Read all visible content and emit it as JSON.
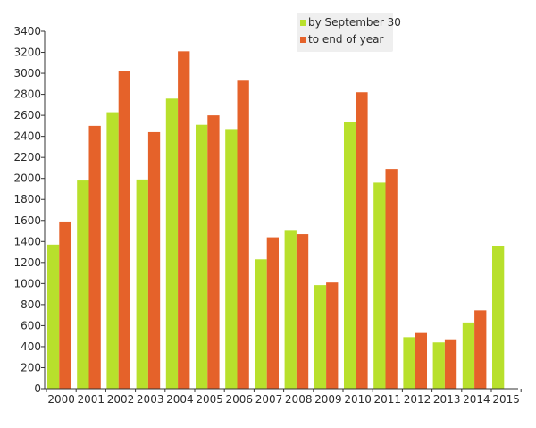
{
  "chart_data": {
    "type": "bar",
    "categories": [
      "2000",
      "2001",
      "2002",
      "2003",
      "2004",
      "2005",
      "2006",
      "2007",
      "2008",
      "2009",
      "2010",
      "2011",
      "2012",
      "2013",
      "2014",
      "2015"
    ],
    "series": [
      {
        "name": "by September 30",
        "color": "#b8e02c",
        "values": [
          1370,
          1980,
          2630,
          1990,
          2760,
          2510,
          2470,
          1230,
          1510,
          985,
          2540,
          1960,
          490,
          440,
          630,
          1360
        ]
      },
      {
        "name": "to end of year",
        "color": "#e5622a",
        "values": [
          1590,
          2500,
          3020,
          2440,
          3210,
          2600,
          2930,
          1440,
          1470,
          1010,
          2820,
          2090,
          530,
          470,
          745,
          null
        ]
      }
    ],
    "ylim": [
      0,
      3400
    ],
    "yticks": [
      0,
      200,
      400,
      600,
      800,
      1000,
      1200,
      1400,
      1600,
      1800,
      2000,
      2200,
      2400,
      2600,
      2800,
      3000,
      3200,
      3400
    ],
    "title": "",
    "xlabel": "",
    "ylabel": "",
    "grid": false,
    "legend_position": "top-center"
  }
}
